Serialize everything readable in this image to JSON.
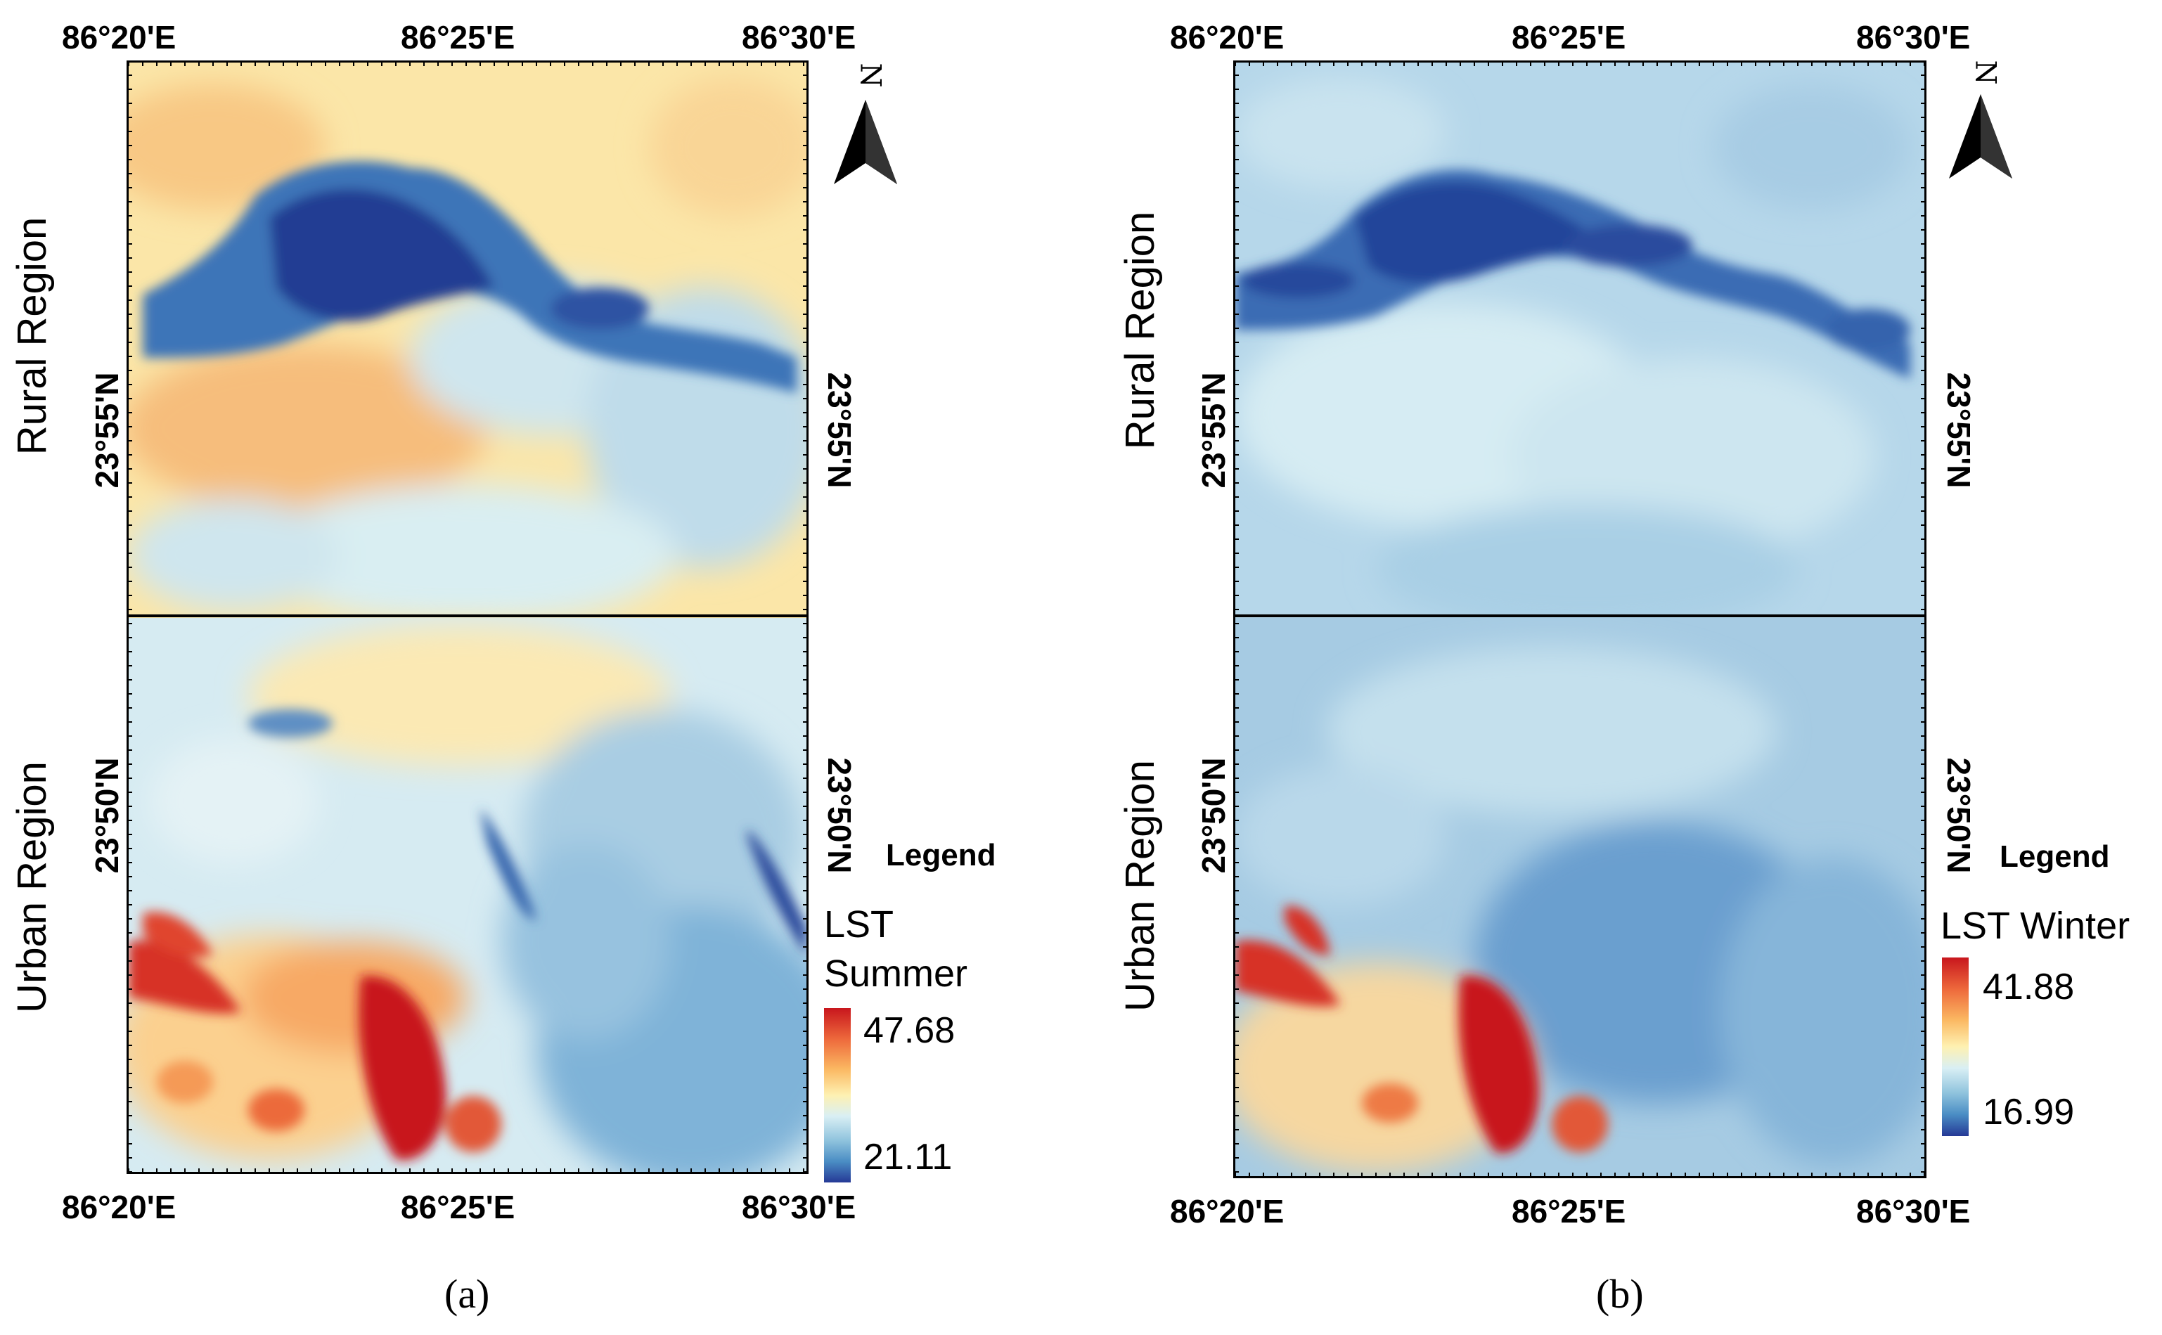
{
  "panels": [
    {
      "caption": "(a)",
      "top_lon_labels": [
        "86°20'E",
        "86°25'E",
        "86°30'E"
      ],
      "bottom_lon_labels": [
        "86°20'E",
        "86°25'E",
        "86°30'E"
      ],
      "rural_lat_label": "23°55'N",
      "urban_lat_label": "23°50'N",
      "rural_label": "Rural Region",
      "urban_label": "Urban Region",
      "north_symbol": "N",
      "legend": {
        "title": "Legend",
        "name_line1": "LST",
        "name_line2": "Summer",
        "max": "47.68",
        "min": "21.11"
      }
    },
    {
      "caption": "(b)",
      "top_lon_labels": [
        "86°20'E",
        "86°25'E",
        "86°30'E"
      ],
      "bottom_lon_labels": [
        "86°20'E",
        "86°25'E",
        "86°30'E"
      ],
      "rural_lat_label": "23°55'N",
      "urban_lat_label": "23°50'N",
      "rural_label": "Rural Region",
      "urban_label": "Urban Region",
      "north_symbol": "N",
      "legend": {
        "title": "Legend",
        "name_line1": "LST Winter",
        "max": "41.88",
        "min": "16.99"
      }
    }
  ],
  "colors": {
    "hot": "#c8161d",
    "warm": "#fbb862",
    "neutral": "#fef1b2",
    "cool": "#8fc3dd",
    "cold": "#253996"
  },
  "icons": [
    "north-arrow-icon"
  ]
}
